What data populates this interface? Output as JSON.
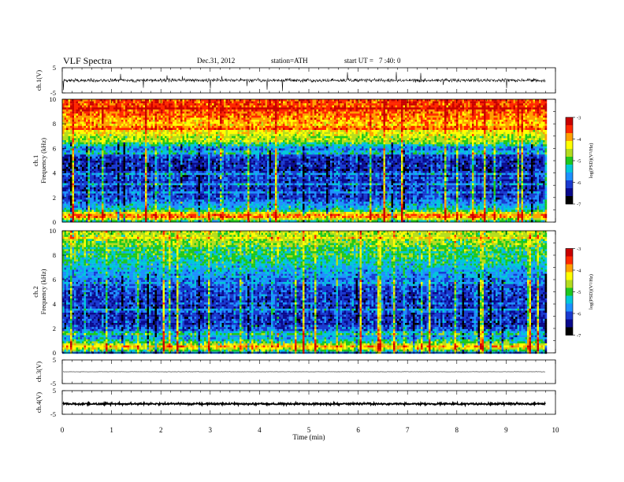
{
  "header": {
    "title": "VLF  Spectra",
    "date": "Dec.31, 2012",
    "station": "station=ATH",
    "start_label": "start  UT  =",
    "start_time": "7 :40: 0"
  },
  "colors": {
    "trace": "#000000",
    "colormap": [
      "#000000",
      "#0a0a8c",
      "#1a3ad0",
      "#1e90ff",
      "#00c8d8",
      "#1ec81e",
      "#b4dc1e",
      "#ffff00",
      "#ffa000",
      "#ff2800",
      "#c80000",
      "#ffffff"
    ]
  },
  "chart_data": [
    {
      "type": "line",
      "panel": "ch.1",
      "ylabel": "ch.1(V)",
      "yticks": [
        "5",
        "-5"
      ],
      "ylim": [
        -5,
        5
      ],
      "xlim": [
        0,
        10
      ],
      "trace_baseline": 0,
      "trace_noise_amplitude": 0.6,
      "spike_amplitude": 4,
      "data_end_min": 9.8
    },
    {
      "type": "heatmap",
      "panel": "ch.1",
      "ylabel": "ch.1\nFrequency (kHz)",
      "ylabel_lines": [
        "ch.1",
        "Frequency (kHz)"
      ],
      "yticks": [
        "0",
        "2",
        "4",
        "6",
        "8",
        "10"
      ],
      "ylim": [
        0,
        10
      ],
      "xlim": [
        0,
        10
      ],
      "data_end_min": 9.8,
      "colorbar": {
        "label": "log(PSD)(V²/Hz)",
        "ticks": [
          "-3",
          "-4",
          "-5",
          "-6",
          "-7"
        ],
        "range": [
          -7,
          -3
        ]
      },
      "profile_freq_kHz": [
        0,
        0.5,
        1,
        2,
        3,
        4,
        5,
        6,
        6.5,
        7,
        8,
        9,
        10
      ],
      "profile_logpsd": [
        -5.6,
        -3.6,
        -5.4,
        -6.2,
        -6.3,
        -6.3,
        -6.4,
        -5.9,
        -4.8,
        -4.5,
        -4.1,
        -3.7,
        -3.6
      ]
    },
    {
      "type": "heatmap",
      "panel": "ch.2",
      "ylabel": "ch.2\nFrequency (kHz)",
      "ylabel_lines": [
        "ch.2",
        "Frequency (kHz)"
      ],
      "yticks": [
        "0",
        "2",
        "4",
        "6",
        "8",
        "10"
      ],
      "ylim": [
        0,
        10
      ],
      "xlim": [
        0,
        10
      ],
      "data_end_min": 9.8,
      "colorbar": {
        "label": "log(PSD)(V²/Hz)",
        "ticks": [
          "-3",
          "-4",
          "-5",
          "-6",
          "-7"
        ],
        "range": [
          -7,
          -3
        ]
      },
      "profile_freq_kHz": [
        0,
        0.5,
        1,
        2,
        3,
        4,
        5,
        6,
        7,
        8,
        9,
        10
      ],
      "profile_logpsd": [
        -5.7,
        -4.0,
        -5.5,
        -6.1,
        -6.3,
        -6.3,
        -6.2,
        -5.9,
        -5.5,
        -5.1,
        -4.8,
        -4.6
      ]
    },
    {
      "type": "line",
      "panel": "ch.3",
      "ylabel": "ch.3(V)",
      "yticks": [
        "5",
        "-5"
      ],
      "ylim": [
        -5,
        5
      ],
      "xlim": [
        0,
        10
      ],
      "trace_baseline": 0,
      "trace_noise_amplitude": 0.05,
      "data_end_min": 9.8
    },
    {
      "type": "line",
      "panel": "ch.4",
      "ylabel": "ch.4(V)",
      "yticks": [
        "5",
        "-5"
      ],
      "ylim": [
        -5,
        5
      ],
      "xlim": [
        0,
        10
      ],
      "trace_baseline": -0.6,
      "trace_noise_amplitude": 0.35,
      "data_end_min": 9.8,
      "xlabel": "Time  (min)",
      "xticks": [
        "0",
        "1",
        "2",
        "3",
        "4",
        "5",
        "6",
        "7",
        "8",
        "9",
        "10"
      ]
    }
  ]
}
